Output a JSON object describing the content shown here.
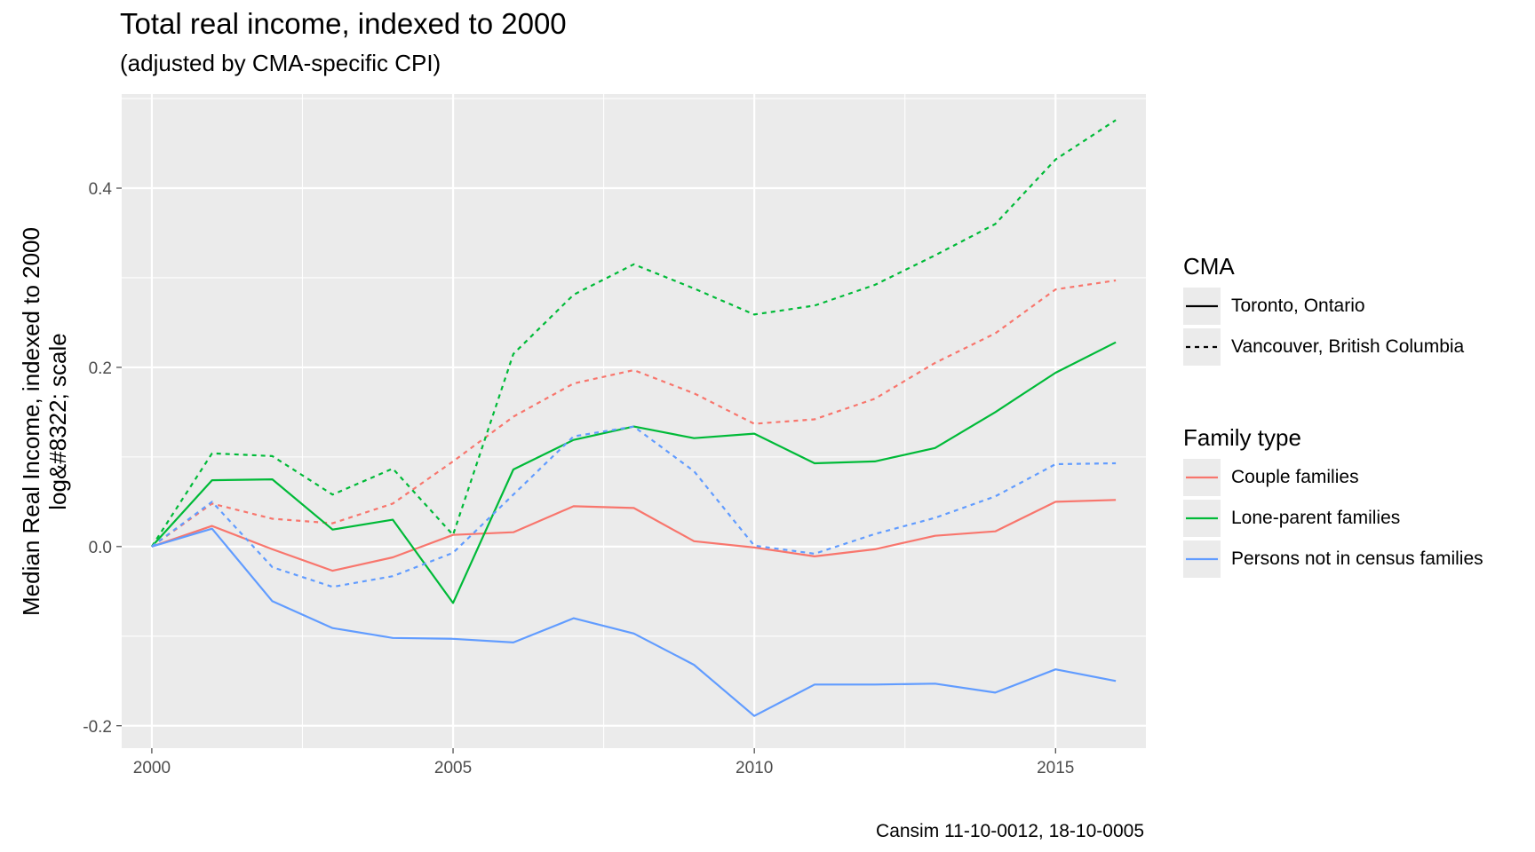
{
  "chart_data": {
    "type": "line",
    "title": "Total real income, indexed to 2000",
    "subtitle": "(adjusted by CMA-specific CPI)",
    "ylabel_lines": [
      "Median Real Income, indexed to 2000",
      "log&#8322; scale"
    ],
    "caption": "Cansim 11-10-0012, 18-10-0005",
    "xlim": [
      1999.5,
      2016.5
    ],
    "ylim": [
      -0.225,
      0.505
    ],
    "x_ticks": [
      2000,
      2005,
      2010,
      2015
    ],
    "y_ticks": [
      -0.2,
      0.0,
      0.2,
      0.4
    ],
    "y_tick_labels": [
      "-0.2",
      "0.0",
      "0.2",
      "0.4"
    ],
    "x_tick_labels": [
      "2000",
      "2005",
      "2010",
      "2015"
    ],
    "grid": true,
    "legend_position": "right",
    "x": [
      2000,
      2001,
      2002,
      2003,
      2004,
      2005,
      2006,
      2007,
      2008,
      2009,
      2010,
      2011,
      2012,
      2013,
      2014,
      2015,
      2016
    ],
    "series": [
      {
        "family": "Couple families",
        "cma": "Toronto, Ontario",
        "color": "#F8766D",
        "linetype": "solid",
        "values": [
          0.0,
          0.023,
          -0.003,
          -0.027,
          -0.012,
          0.013,
          0.016,
          0.045,
          0.043,
          0.006,
          -0.001,
          -0.011,
          -0.003,
          0.012,
          0.017,
          0.05,
          0.052
        ]
      },
      {
        "family": "Couple families",
        "cma": "Vancouver, British Columbia",
        "color": "#F8766D",
        "linetype": "dashed",
        "values": [
          0.0,
          0.048,
          0.031,
          0.026,
          0.048,
          0.095,
          0.145,
          0.182,
          0.197,
          0.171,
          0.137,
          0.142,
          0.165,
          0.205,
          0.238,
          0.287,
          0.297
        ]
      },
      {
        "family": "Lone-parent families",
        "cma": "Toronto, Ontario",
        "color": "#00BA38",
        "linetype": "solid",
        "values": [
          0.0,
          0.074,
          0.075,
          0.019,
          0.03,
          -0.063,
          0.086,
          0.119,
          0.134,
          0.121,
          0.126,
          0.093,
          0.095,
          0.11,
          0.15,
          0.194,
          0.228
        ]
      },
      {
        "family": "Lone-parent families",
        "cma": "Vancouver, British Columbia",
        "color": "#00BA38",
        "linetype": "dashed",
        "values": [
          0.0,
          0.104,
          0.101,
          0.058,
          0.087,
          0.013,
          0.215,
          0.281,
          0.315,
          0.288,
          0.259,
          0.269,
          0.292,
          0.325,
          0.36,
          0.432,
          0.476
        ]
      },
      {
        "family": "Persons not in census families",
        "cma": "Toronto, Ontario",
        "color": "#619CFF",
        "linetype": "solid",
        "values": [
          0.0,
          0.02,
          -0.061,
          -0.091,
          -0.102,
          -0.103,
          -0.107,
          -0.08,
          -0.097,
          -0.132,
          -0.189,
          -0.154,
          -0.154,
          -0.153,
          -0.163,
          -0.137,
          -0.15
        ]
      },
      {
        "family": "Persons not in census families",
        "cma": "Vancouver, British Columbia",
        "color": "#619CFF",
        "linetype": "dashed",
        "values": [
          0.0,
          0.05,
          -0.023,
          -0.045,
          -0.033,
          -0.007,
          0.058,
          0.123,
          0.134,
          0.084,
          0.001,
          -0.008,
          0.014,
          0.032,
          0.056,
          0.092,
          0.093
        ]
      }
    ]
  },
  "legend": {
    "cma": {
      "title": "CMA",
      "items": [
        {
          "label": "Toronto, Ontario",
          "linetype": "solid",
          "color": "#000000"
        },
        {
          "label": "Vancouver, British Columbia",
          "linetype": "dashed",
          "color": "#000000"
        }
      ]
    },
    "family": {
      "title": "Family type",
      "items": [
        {
          "label": "Couple families",
          "color": "#F8766D"
        },
        {
          "label": "Lone-parent families",
          "color": "#00BA38"
        },
        {
          "label": "Persons not in census families",
          "color": "#619CFF"
        }
      ]
    }
  }
}
